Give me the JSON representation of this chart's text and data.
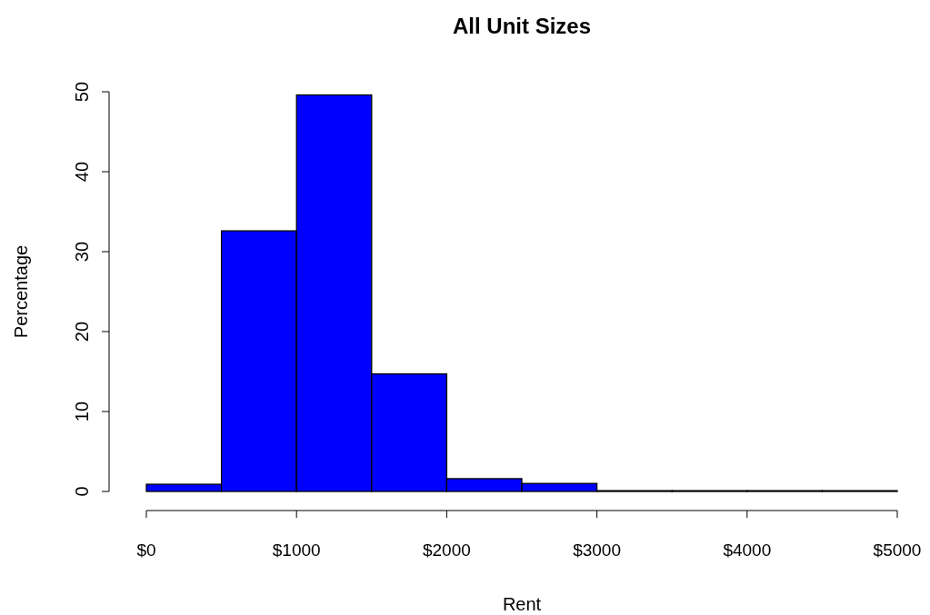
{
  "chart_data": {
    "type": "histogram",
    "title": "All Unit Sizes",
    "xlabel": "Rent",
    "ylabel": "Percentage",
    "bins": [
      0,
      500,
      1000,
      1500,
      2000,
      2500,
      3000,
      3500,
      4000,
      4500,
      5000
    ],
    "values": [
      0.9,
      32.6,
      49.6,
      14.7,
      1.6,
      1.0,
      0.1,
      0.1,
      0.1,
      0.1
    ],
    "color": "#0000ff",
    "xlim": [
      0,
      5000
    ],
    "xticks": [
      {
        "value": 0,
        "label": "$0"
      },
      {
        "value": 1000,
        "label": "$1000"
      },
      {
        "value": 2000,
        "label": "$2000"
      },
      {
        "value": 3000,
        "label": "$3000"
      },
      {
        "value": 4000,
        "label": "$4000"
      },
      {
        "value": 5000,
        "label": "$5000"
      }
    ],
    "ylim": [
      0,
      50
    ],
    "yticks": [
      0,
      10,
      20,
      30,
      40,
      50
    ],
    "grid": false
  }
}
